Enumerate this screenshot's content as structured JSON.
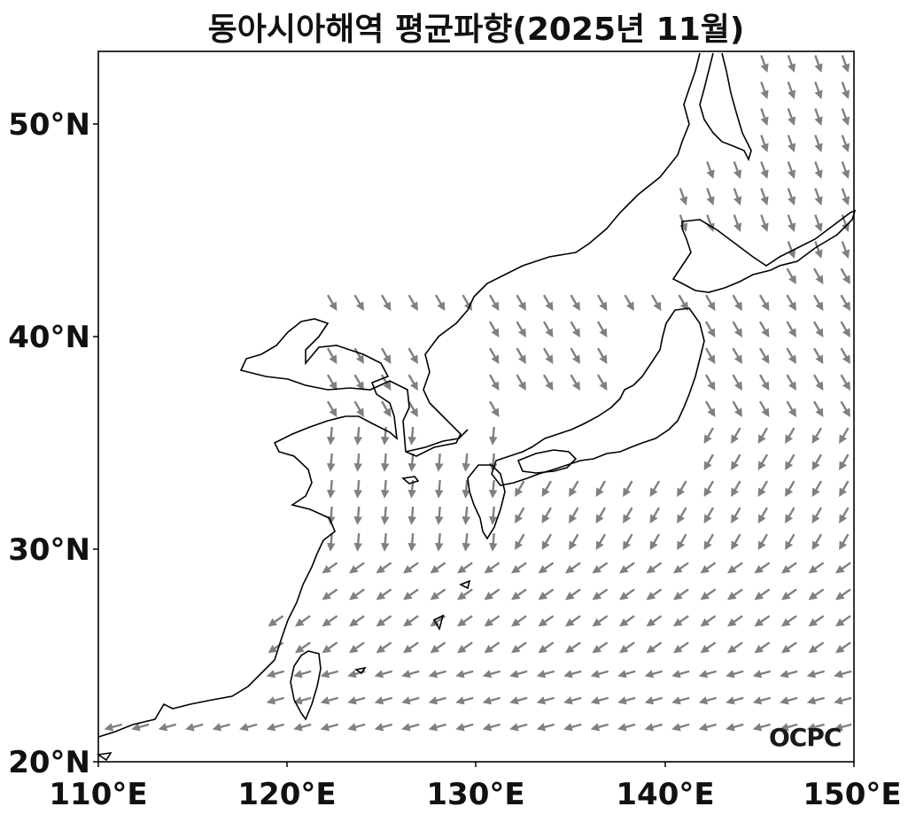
{
  "title": "동아시아해역 평균파향(2025년 11월)",
  "logo": "OCPC",
  "axes": {
    "lon_ticks": [
      "110°E",
      "120°E",
      "130°E",
      "140°E",
      "150°E"
    ],
    "lat_ticks": [
      "20°N",
      "30°N",
      "40°N",
      "50°N"
    ],
    "lon_range": [
      110,
      150
    ],
    "lat_range": [
      20,
      53.4
    ]
  },
  "colors": {
    "arrow": "#808080",
    "coast": "#000000",
    "frame": "#000000"
  },
  "map_extent": "110°E–150°E, 20°N–53°N"
}
